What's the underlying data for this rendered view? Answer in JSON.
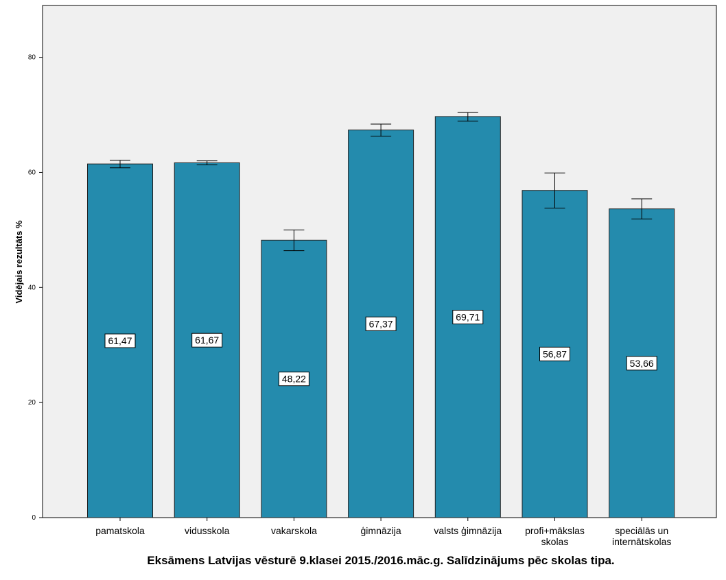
{
  "chart_data": {
    "type": "bar",
    "categories": [
      "pamatskola",
      "vidusskola",
      "vakarskola",
      "ģimnāzija",
      "valsts ģimnāzija",
      "profi+mākslas skolas",
      "speciālās un internātskolas"
    ],
    "category_lines": [
      [
        "pamatskola"
      ],
      [
        "vidusskola"
      ],
      [
        "vakarskola"
      ],
      [
        "ģimnāzija"
      ],
      [
        "valsts ģimnāzija"
      ],
      [
        "profi+mākslas",
        "skolas"
      ],
      [
        "speciālās un",
        "internātskolas"
      ]
    ],
    "values": [
      61.47,
      61.67,
      48.22,
      67.37,
      69.71,
      56.87,
      53.66
    ],
    "value_labels": [
      "61,47",
      "61,67",
      "48,22",
      "67,37",
      "69,71",
      "56,87",
      "53,66"
    ],
    "error_low": [
      60.8,
      61.3,
      46.4,
      66.3,
      68.9,
      53.8,
      51.9
    ],
    "error_high": [
      62.1,
      62.0,
      50.0,
      68.4,
      70.4,
      59.9,
      55.4
    ],
    "ylim": [
      0,
      88
    ],
    "yticks": [
      0,
      20,
      40,
      60,
      80
    ],
    "ylabel": "Vidējais rezultāts %",
    "xlabel": "Eksāmens Latvijas vēsturē 9.klasei 2015./2016.māc.g. Salīdzinājums pēc skolas tipa.",
    "bar_color": "#248bad",
    "plot_background": "#f0f0f0",
    "grid": false
  }
}
